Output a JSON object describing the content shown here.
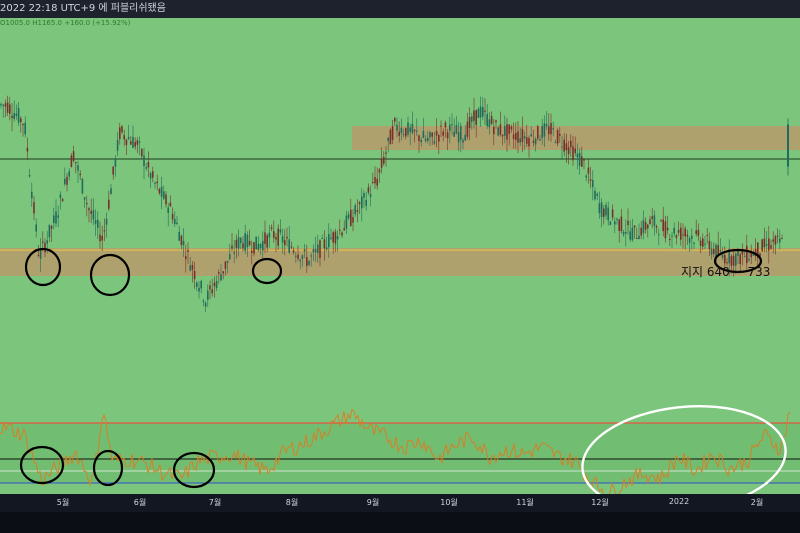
{
  "header": {
    "title_text": "2022 22:18 UTC+9 에 퍼블리쉬됐음"
  },
  "legend_text": "O1005.0 H1165.0 +160.0 (+15.92%)",
  "annotation": {
    "support_label": "지지 640 ~ 733"
  },
  "colors": {
    "background": "#7cc57c",
    "candle_up": "#1f6b5c",
    "candle_down": "#7a2e2a",
    "rsi_line": "#e07a1f",
    "support_zone": "#b99a6b",
    "resistance_zone": "#b99a6b",
    "upper_band": "#ff3b30",
    "mid_band": "#111111",
    "lower_band": "#3050d0",
    "circle": "#000000",
    "ellipse": "#ffffff"
  },
  "chart_data": [
    {
      "type": "candlestick",
      "title": "",
      "x_axis": {
        "type": "date",
        "tick_labels": [
          "5월",
          "6월",
          "7월",
          "8월",
          "9월",
          "10월",
          "11월",
          "12월",
          "2022",
          "2월"
        ]
      },
      "price_path": [
        [
          "2021-04-15",
          1210
        ],
        [
          "2021-04-22",
          1150
        ],
        [
          "2021-04-28",
          700
        ],
        [
          "2021-05-05",
          840
        ],
        [
          "2021-05-12",
          1050
        ],
        [
          "2021-05-18",
          870
        ],
        [
          "2021-05-24",
          760
        ],
        [
          "2021-05-31",
          1120
        ],
        [
          "2021-06-07",
          1080
        ],
        [
          "2021-06-14",
          950
        ],
        [
          "2021-06-21",
          860
        ],
        [
          "2021-06-28",
          700
        ],
        [
          "2021-07-05",
          560
        ],
        [
          "2021-07-12",
          660
        ],
        [
          "2021-07-19",
          760
        ],
        [
          "2021-07-26",
          740
        ],
        [
          "2021-08-02",
          780
        ],
        [
          "2021-08-09",
          740
        ],
        [
          "2021-08-16",
          690
        ],
        [
          "2021-08-23",
          750
        ],
        [
          "2021-08-30",
          800
        ],
        [
          "2021-09-06",
          870
        ],
        [
          "2021-09-13",
          960
        ],
        [
          "2021-09-20",
          1140
        ],
        [
          "2021-09-27",
          1120
        ],
        [
          "2021-10-04",
          1090
        ],
        [
          "2021-10-11",
          1130
        ],
        [
          "2021-10-18",
          1110
        ],
        [
          "2021-10-25",
          1190
        ],
        [
          "2021-11-01",
          1130
        ],
        [
          "2021-11-08",
          1110
        ],
        [
          "2021-11-15",
          1100
        ],
        [
          "2021-11-22",
          1130
        ],
        [
          "2021-11-29",
          1080
        ],
        [
          "2021-12-06",
          1020
        ],
        [
          "2021-12-13",
          870
        ],
        [
          "2021-12-20",
          820
        ],
        [
          "2021-12-27",
          780
        ],
        [
          "2022-01-03",
          820
        ],
        [
          "2022-01-10",
          790
        ],
        [
          "2022-01-17",
          780
        ],
        [
          "2022-01-24",
          760
        ],
        [
          "2022-01-31",
          710
        ],
        [
          "2022-02-07",
          700
        ],
        [
          "2022-02-14",
          720
        ],
        [
          "2022-02-21",
          750
        ]
      ],
      "last_bar": {
        "open": 1005.0,
        "high": 1165.0,
        "change": 160.0,
        "change_pct": 15.92
      },
      "support_zone": [
        640,
        733
      ],
      "resistance_zone": [
        1060,
        1140
      ],
      "horizontal_line": 1030,
      "circled_lows": [
        "2021-04-28",
        "2021-05-23",
        "2021-08-01",
        "2022-02-10"
      ]
    },
    {
      "type": "line",
      "series": [
        {
          "values": [
            [
              "2021-04-15",
              76
            ],
            [
              "2021-04-22",
              70
            ],
            [
              "2021-04-29",
              32
            ],
            [
              "2021-05-06",
              44
            ],
            [
              "2021-05-13",
              55
            ],
            [
              "2021-05-20",
              30
            ],
            [
              "2021-05-24",
              92
            ],
            [
              "2021-05-28",
              48
            ],
            [
              "2021-06-04",
              50
            ],
            [
              "2021-06-11",
              46
            ],
            [
              "2021-06-18",
              38
            ],
            [
              "2021-06-25",
              34
            ],
            [
              "2021-07-02",
              48
            ],
            [
              "2021-07-09",
              52
            ],
            [
              "2021-07-16",
              54
            ],
            [
              "2021-07-23",
              46
            ],
            [
              "2021-07-30",
              40
            ],
            [
              "2021-08-06",
              56
            ],
            [
              "2021-08-13",
              62
            ],
            [
              "2021-08-20",
              70
            ],
            [
              "2021-08-27",
              80
            ],
            [
              "2021-09-03",
              88
            ],
            [
              "2021-09-10",
              74
            ],
            [
              "2021-09-17",
              68
            ],
            [
              "2021-09-24",
              60
            ],
            [
              "2021-10-01",
              66
            ],
            [
              "2021-10-08",
              50
            ],
            [
              "2021-10-15",
              62
            ],
            [
              "2021-10-22",
              68
            ],
            [
              "2021-10-29",
              52
            ],
            [
              "2021-11-05",
              58
            ],
            [
              "2021-11-12",
              54
            ],
            [
              "2021-11-19",
              60
            ],
            [
              "2021-11-26",
              52
            ],
            [
              "2021-12-03",
              48
            ],
            [
              "2021-12-10",
              30
            ],
            [
              "2021-12-17",
              22
            ],
            [
              "2021-12-24",
              32
            ],
            [
              "2021-12-31",
              38
            ],
            [
              "2022-01-07",
              34
            ],
            [
              "2022-01-14",
              52
            ],
            [
              "2022-01-21",
              40
            ],
            [
              "2022-01-28",
              54
            ],
            [
              "2022-02-04",
              42
            ],
            [
              "2022-02-11",
              48
            ],
            [
              "2022-02-18",
              70
            ],
            [
              "2022-02-25",
              58
            ],
            [
              "2022-03-01",
              96
            ]
          ]
        }
      ],
      "bands": [
        80,
        50,
        30
      ]
    }
  ]
}
